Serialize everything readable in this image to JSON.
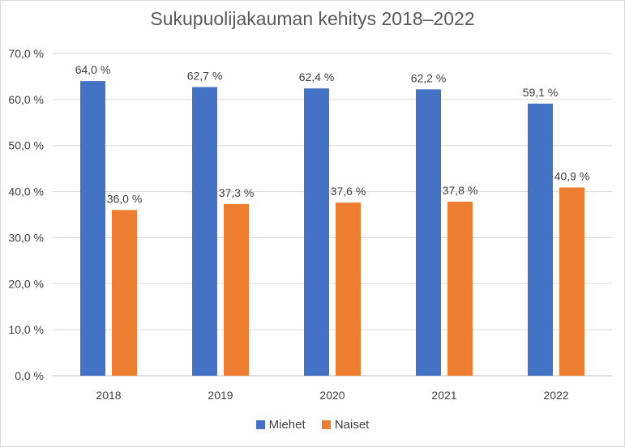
{
  "chart_data": {
    "type": "bar",
    "title": "Sukupuolijakauman kehitys 2018–2022",
    "categories": [
      "2018",
      "2019",
      "2020",
      "2021",
      "2022"
    ],
    "series": [
      {
        "name": "Miehet",
        "color": "#4472C4",
        "values": [
          64.0,
          62.7,
          62.4,
          62.2,
          59.1
        ],
        "labels": [
          "64,0 %",
          "62,7 %",
          "62,4 %",
          "62,2 %",
          "59,1 %"
        ]
      },
      {
        "name": "Naiset",
        "color": "#ED7D31",
        "values": [
          36.0,
          37.3,
          37.6,
          37.8,
          40.9
        ],
        "labels": [
          "36,0 %",
          "37,3 %",
          "37,6 %",
          "37,8 %",
          "40,9 %"
        ]
      }
    ],
    "ylim": [
      0,
      70
    ],
    "yticks": [
      "0,0 %",
      "10,0 %",
      "20,0 %",
      "30,0 %",
      "40,0 %",
      "50,0 %",
      "60,0 %",
      "70,0 %"
    ],
    "grid": true,
    "legend": "bottom"
  }
}
